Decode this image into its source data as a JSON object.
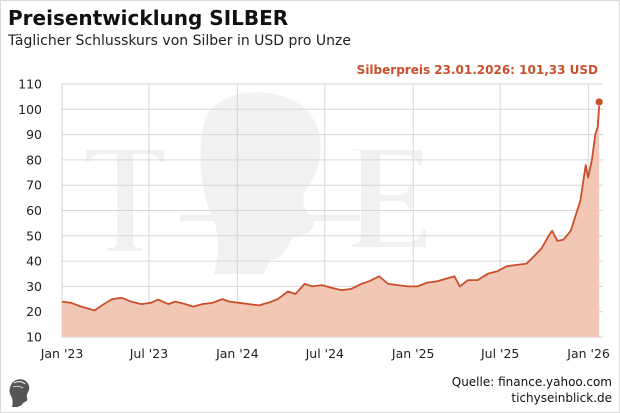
{
  "header": {
    "title": "Preisentwicklung SILBER",
    "subtitle": "Täglicher Schlusskurs von Silber in USD pro Unze"
  },
  "annotation": "Silberpreis 23.01.2026: 101,33 USD",
  "footer": {
    "source": "Quelle: finance.yahoo.com",
    "site": "tichyseinblick.de"
  },
  "colors": {
    "line": "#c9502a",
    "fill": "#f2c4b1",
    "grid": "#d6d6d6",
    "annotation": "#c9502a"
  },
  "chart_data": {
    "type": "area",
    "title": "Preisentwicklung SILBER",
    "subtitle": "Täglicher Schlusskurs von Silber in USD pro Unze",
    "xlabel": "",
    "ylabel": "",
    "ylim": [
      10,
      110
    ],
    "yticks": [
      10,
      20,
      30,
      40,
      50,
      60,
      70,
      80,
      90,
      100,
      110
    ],
    "xticks": [
      {
        "label": "Jan '23",
        "date": "2023-01-01"
      },
      {
        "label": "Jul '23",
        "date": "2023-07-01"
      },
      {
        "label": "Jan '24",
        "date": "2024-01-01"
      },
      {
        "label": "Jul '24",
        "date": "2024-07-01"
      },
      {
        "label": "Jan '25",
        "date": "2025-01-01"
      },
      {
        "label": "Jul '25",
        "date": "2025-07-01"
      },
      {
        "label": "Jan '26",
        "date": "2026-01-01"
      }
    ],
    "xlim": [
      "2023-01-01",
      "2026-01-31"
    ],
    "grid": true,
    "legend": "none",
    "series": [
      {
        "x": [
          "2023-01-01",
          "2023-01-20",
          "2023-02-10",
          "2023-03-01",
          "2023-03-10",
          "2023-03-25",
          "2023-04-15",
          "2023-05-05",
          "2023-05-25",
          "2023-06-15",
          "2023-07-05",
          "2023-07-20",
          "2023-08-10",
          "2023-08-25",
          "2023-09-15",
          "2023-10-01",
          "2023-10-20",
          "2023-11-10",
          "2023-12-01",
          "2023-12-15",
          "2024-01-05",
          "2024-01-25",
          "2024-02-15",
          "2024-03-05",
          "2024-03-25",
          "2024-04-15",
          "2024-05-01",
          "2024-05-20",
          "2024-06-05",
          "2024-06-25",
          "2024-07-15",
          "2024-08-05",
          "2024-08-25",
          "2024-09-15",
          "2024-10-01",
          "2024-10-22",
          "2024-11-10",
          "2024-11-30",
          "2024-12-20",
          "2025-01-10",
          "2025-01-30",
          "2025-02-20",
          "2025-03-10",
          "2025-03-28",
          "2025-04-08",
          "2025-04-25",
          "2025-05-15",
          "2025-06-05",
          "2025-06-25",
          "2025-07-15",
          "2025-08-05",
          "2025-08-25",
          "2025-09-10",
          "2025-09-25",
          "2025-10-10",
          "2025-10-17",
          "2025-10-28",
          "2025-11-10",
          "2025-11-25",
          "2025-12-05",
          "2025-12-15",
          "2025-12-26",
          "2025-12-31",
          "2026-01-08",
          "2026-01-15",
          "2026-01-20",
          "2026-01-23"
        ],
        "values": [
          24.0,
          23.5,
          22.0,
          21.0,
          20.5,
          22.5,
          25.0,
          25.5,
          24.0,
          23.0,
          23.5,
          24.8,
          23.0,
          24.0,
          23.0,
          22.0,
          23.0,
          23.5,
          25.0,
          24.0,
          23.5,
          23.0,
          22.5,
          23.5,
          25.0,
          28.0,
          27.0,
          31.0,
          30.0,
          30.5,
          29.5,
          28.5,
          29.0,
          31.0,
          32.0,
          34.0,
          31.0,
          30.5,
          30.0,
          30.0,
          31.5,
          32.0,
          33.0,
          34.0,
          30.0,
          32.5,
          32.5,
          35.0,
          36.0,
          38.0,
          38.5,
          39.0,
          42.0,
          45.0,
          50.0,
          52.0,
          48.0,
          48.5,
          52.0,
          58.0,
          64.0,
          78.0,
          73.0,
          80.0,
          90.0,
          93.0,
          101.33
        ]
      }
    ],
    "last_point": {
      "date": "2026-01-23",
      "value": 101.33
    }
  }
}
